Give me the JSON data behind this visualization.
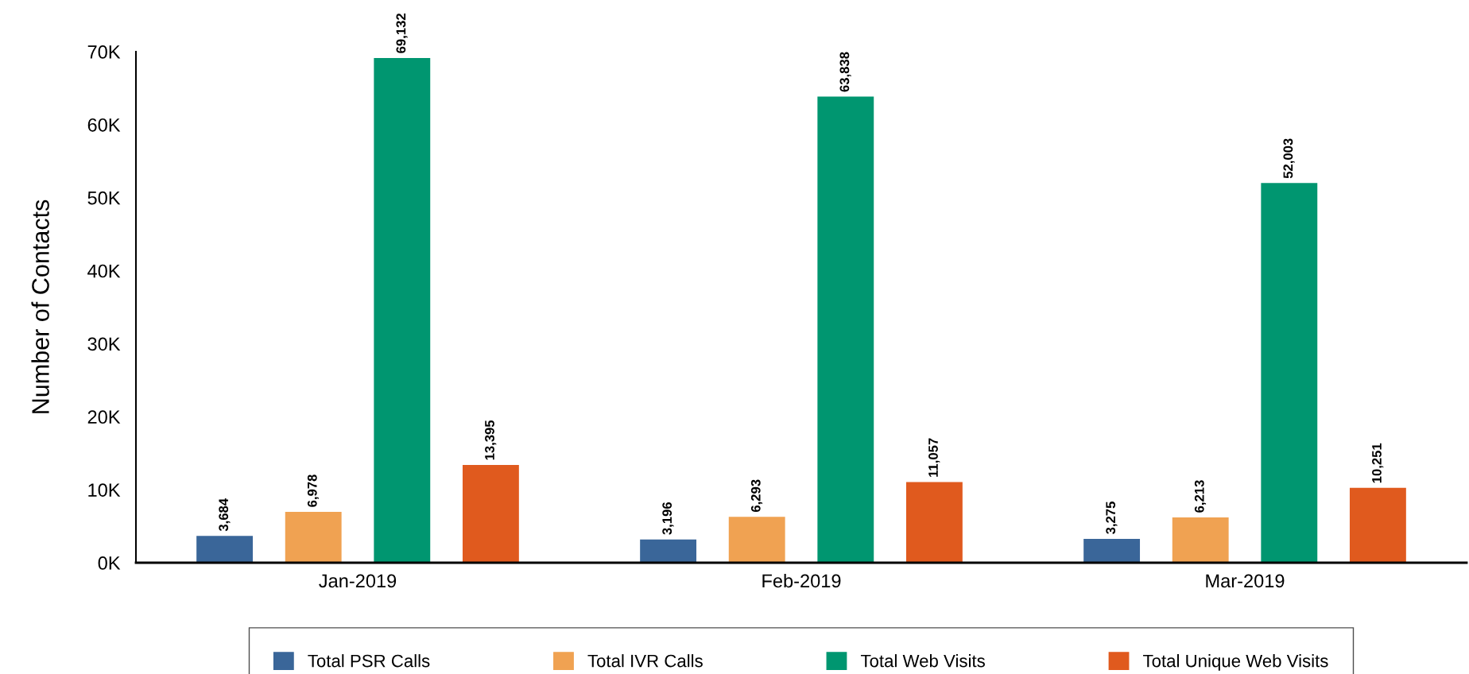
{
  "chart_data": {
    "type": "bar",
    "ylabel": "Number of Contacts",
    "categories": [
      "Jan-2019",
      "Feb-2019",
      "Mar-2019"
    ],
    "series": [
      {
        "name": "Total PSR Calls",
        "color": "#3a6699",
        "values": [
          3684,
          3196,
          3275
        ]
      },
      {
        "name": "Total IVR Calls",
        "color": "#f0a252",
        "values": [
          6978,
          6293,
          6213
        ]
      },
      {
        "name": "Total Web Visits",
        "color": "#009670",
        "values": [
          69132,
          63838,
          52003
        ]
      },
      {
        "name": "Total Unique Web Visits",
        "color": "#e05a1e",
        "values": [
          13395,
          11057,
          10251
        ]
      }
    ],
    "value_labels": [
      [
        "3,684",
        "3,196",
        "3,275"
      ],
      [
        "6,978",
        "6,293",
        "6,213"
      ],
      [
        "69,132",
        "63,838",
        "52,003"
      ],
      [
        "13,395",
        "11,057",
        "10,251"
      ]
    ],
    "ylim": [
      0,
      70000
    ],
    "yticks": [
      {
        "value": 0,
        "label": "0K"
      },
      {
        "value": 10000,
        "label": "10K"
      },
      {
        "value": 20000,
        "label": "20K"
      },
      {
        "value": 30000,
        "label": "30K"
      },
      {
        "value": 40000,
        "label": "40K"
      },
      {
        "value": 50000,
        "label": "50K"
      },
      {
        "value": 60000,
        "label": "60K"
      },
      {
        "value": 70000,
        "label": "70K"
      }
    ],
    "grid": false,
    "legend": "bottom"
  }
}
